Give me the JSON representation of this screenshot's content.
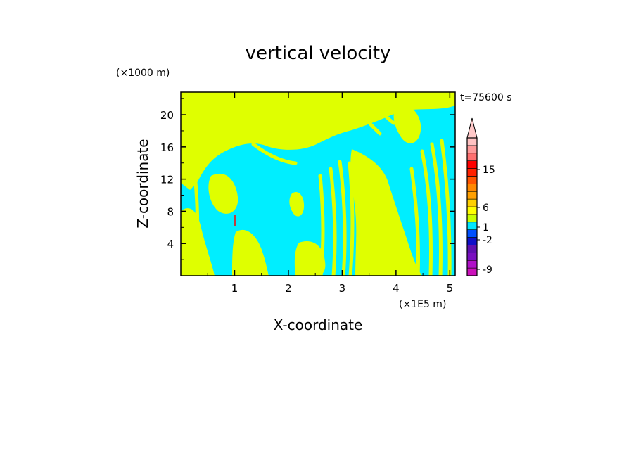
{
  "chart_data": {
    "type": "heatmap",
    "title": "vertical velocity",
    "xlabel": "X-coordinate",
    "ylabel": "Z-coordinate",
    "x_unit": "(×1E5 m)",
    "y_unit": "(×1000 m)",
    "time_label": "t=75600 s",
    "xlim": [
      0,
      5.1
    ],
    "ylim": [
      0,
      22.8
    ],
    "x_ticks": [
      "1",
      "2",
      "3",
      "4",
      "5"
    ],
    "y_ticks": [
      "4",
      "8",
      "12",
      "16",
      "20"
    ],
    "colors": {
      "background_field": "#00eeff",
      "secondary_field": "#dfff00",
      "frame": "#000000"
    },
    "colorbar": {
      "segments": [
        "#cc11bb",
        "#b010c8",
        "#7a10c0",
        "#6010b0",
        "#1010c8",
        "#0050ff",
        "#00e8ff",
        "#c8ff00",
        "#ffff00",
        "#ffd000",
        "#ffa000",
        "#ff8800",
        "#ff5500",
        "#ff2200",
        "#ff0000",
        "#ff7070",
        "#ff9a9a",
        "#ffc2c2"
      ],
      "top_arrow_color": "#ffc8c8",
      "labels": [
        "-9",
        "-2",
        "1",
        "6",
        "15"
      ]
    }
  }
}
